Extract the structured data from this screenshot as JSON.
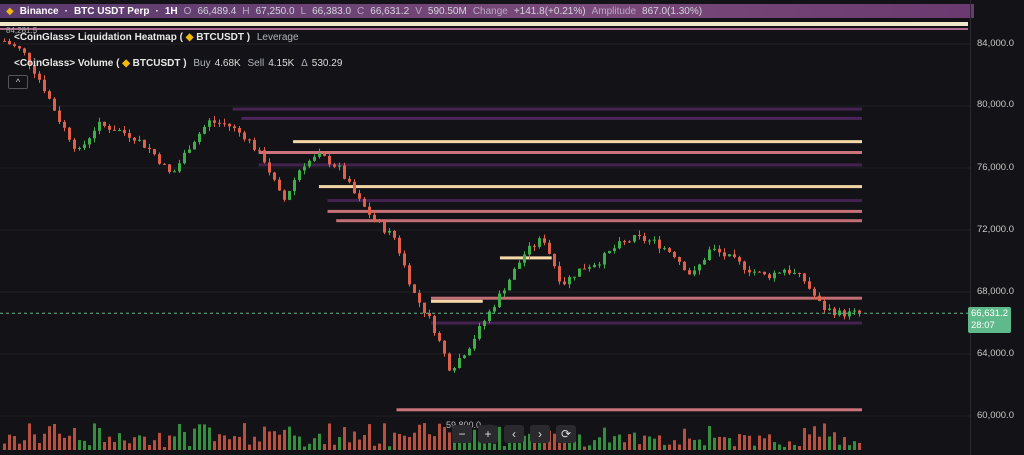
{
  "header": {
    "exchange": "Binance",
    "symbol": "BTC USDT Perp",
    "interval": "1H",
    "open_label": "O",
    "open": "66,489.4",
    "high_label": "H",
    "high": "67,250.0",
    "low_label": "L",
    "low": "66,383.0",
    "close_label": "C",
    "close": "66,631.2",
    "vol_label": "V",
    "volume": "590.50M",
    "change_label": "Change",
    "change": "+141.8(+0.21%)",
    "amp_label": "Amplitude",
    "amplitude": "867.0(1.30%)"
  },
  "indicators": {
    "heatmap": {
      "name": "<CoinGlass> Liquidation Heatmap (",
      "symbol": "BTCUSDT )",
      "extra": "Leverage"
    },
    "volume": {
      "name": "<CoinGlass> Volume (",
      "symbol": "BTCUSDT )",
      "buy_label": "Buy",
      "buy": "4.68K",
      "sell_label": "Sell",
      "sell": "4.15K",
      "delta_label": "Δ",
      "delta": "530.29"
    },
    "collapse_icon": "chevron-up-icon"
  },
  "price_axis": {
    "ticks": [
      "84,000.0",
      "80,000.0",
      "76,000.0",
      "72,000.0",
      "68,000.0",
      "64,000.0",
      "60,000.0"
    ],
    "current_price": "66,631.2",
    "countdown": "28:07"
  },
  "annotations": {
    "high_label": "84,281.5",
    "low_label": "59,800.0"
  },
  "toolbar": {
    "zoom_out": "−",
    "zoom_in": "+",
    "scroll_left": "‹",
    "scroll_right": "›",
    "reset": "⟳"
  },
  "colors": {
    "up": "#3fae4a",
    "down": "#e0604a",
    "price_line": "#5fb98a",
    "heat_bright": "#f6d9a8",
    "heat_pink": "#e07f86",
    "heat_purple": "#5a2a6a"
  },
  "chart_data": {
    "type": "candlestick",
    "ylim": [
      58500,
      86500
    ],
    "closes": [
      84200,
      83500,
      81500,
      79000,
      77000,
      78800,
      78500,
      78000,
      77000,
      75500,
      77500,
      79000,
      78800,
      78000,
      76500,
      73800,
      76200,
      76800,
      76000,
      74000,
      72500,
      71500,
      68000,
      66000,
      63000,
      64500,
      66500,
      68500,
      70500,
      71500,
      68500,
      69500,
      70000,
      71000,
      71500,
      71200,
      70500,
      69000,
      70800,
      70200,
      69500,
      69000,
      69500,
      68800,
      67000,
      66600,
      66631.2
    ],
    "heat_levels": [
      {
        "price": 79800,
        "intensity": 0.5,
        "from": 0.27
      },
      {
        "price": 79200,
        "intensity": 0.6,
        "from": 0.28
      },
      {
        "price": 77700,
        "intensity": 1,
        "from": 0.34
      },
      {
        "price": 77000,
        "intensity": 0.8,
        "from": 0.3
      },
      {
        "price": 76200,
        "intensity": 0.4,
        "from": 0.3
      },
      {
        "price": 74800,
        "intensity": 0.95,
        "from": 0.37
      },
      {
        "price": 73900,
        "intensity": 0.4,
        "from": 0.38
      },
      {
        "price": 73200,
        "intensity": 0.75,
        "from": 0.38
      },
      {
        "price": 72600,
        "intensity": 0.7,
        "from": 0.39
      },
      {
        "price": 70200,
        "intensity": 1,
        "from": 0.58,
        "to": 0.64
      },
      {
        "price": 67600,
        "intensity": 0.7,
        "from": 0.5
      },
      {
        "price": 67400,
        "intensity": 1,
        "from": 0.5,
        "to": 0.56
      },
      {
        "price": 66000,
        "intensity": 0.4,
        "from": 0.5
      },
      {
        "price": 60400,
        "intensity": 0.8,
        "from": 0.46
      }
    ]
  }
}
